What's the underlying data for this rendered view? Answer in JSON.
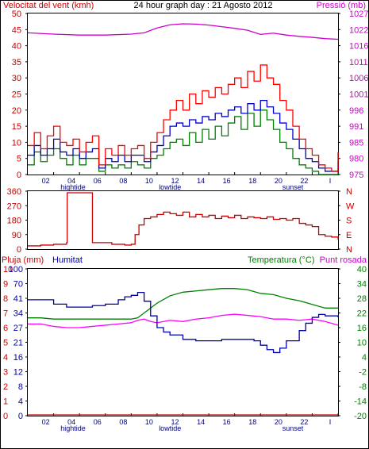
{
  "title": "24 hour graph day : 21 Agosto 2012",
  "colors": {
    "wind_gust": "#ff0000",
    "wind_avg": "#0000cc",
    "wind_min": "#008000",
    "pressure": "#cc00cc",
    "direction": "#cc0000",
    "rain": "#cc0000",
    "humidity": "#0000aa",
    "temperature": "#008000",
    "dewpoint": "#ff00ff",
    "frame": "#000000",
    "axis_label_red": "#cc0000",
    "axis_label_blue": "#0000aa",
    "axis_label_green": "#008000",
    "axis_label_magenta": "#cc00cc"
  },
  "chart_data": [
    {
      "id": "wind_pressure",
      "type": "line",
      "left_label": "Velocitat del vent (kmh)",
      "right_label": "Pressió (mb)",
      "xlim": [
        0,
        24
      ],
      "ylim": [
        0,
        50
      ],
      "y2lim": [
        975,
        1025
      ],
      "x_ticks": [
        "02",
        "04",
        "06",
        "08",
        "10",
        "12",
        "14",
        "16",
        "18",
        "20",
        "22",
        "I"
      ],
      "x_markers": [
        {
          "hour": 3.5,
          "label": "hightide"
        },
        {
          "hour": 11,
          "label": "lowtide"
        },
        {
          "hour": 20.5,
          "label": "sunset"
        }
      ],
      "y_ticks": [
        "0",
        "5",
        "10",
        "15",
        "20",
        "25",
        "30",
        "35",
        "40",
        "45",
        "50"
      ],
      "y2_ticks": [
        "975",
        "980",
        "985",
        "991",
        "996",
        "1001",
        "1006",
        "1011",
        "1016",
        "1022",
        "1027"
      ],
      "series": [
        {
          "key": "gust",
          "axis": "left",
          "x": [
            0,
            0.5,
            1,
            1.5,
            2,
            2.5,
            3,
            3.5,
            4,
            4.5,
            5,
            5.5,
            6,
            6.5,
            7,
            7.5,
            8,
            8.5,
            9,
            9.5,
            10,
            10.5,
            11,
            11.5,
            12,
            12.5,
            13,
            13.5,
            14,
            14.5,
            15,
            15.5,
            16,
            16.5,
            17,
            17.5,
            18,
            18.5,
            19,
            19.5,
            20,
            20.5,
            21,
            21.5,
            22,
            22.5,
            23,
            23.5,
            24
          ],
          "values": [
            9,
            13,
            8,
            12,
            15,
            10,
            9,
            11,
            7,
            10,
            12,
            3,
            8,
            6,
            9,
            6,
            8,
            9,
            5,
            10,
            13,
            17,
            20,
            23,
            20,
            25,
            22,
            26,
            24,
            27,
            25,
            28,
            30,
            27,
            32,
            29,
            34,
            30,
            28,
            23,
            20,
            15,
            11,
            8,
            6,
            3,
            2,
            1,
            7
          ]
        },
        {
          "key": "avg",
          "axis": "left",
          "x": [
            0,
            0.5,
            1,
            1.5,
            2,
            2.5,
            3,
            3.5,
            4,
            4.5,
            5,
            5.5,
            6,
            6.5,
            7,
            7.5,
            8,
            8.5,
            9,
            9.5,
            10,
            10.5,
            11,
            11.5,
            12,
            12.5,
            13,
            13.5,
            14,
            14.5,
            15,
            15.5,
            16,
            16.5,
            17,
            17.5,
            18,
            18.5,
            19,
            19.5,
            20,
            20.5,
            21,
            21.5,
            22,
            22.5,
            23,
            23.5,
            24
          ],
          "values": [
            6,
            9,
            6,
            8,
            11,
            7,
            6,
            8,
            5,
            7,
            8,
            2,
            5,
            4,
            6,
            4,
            6,
            6,
            4,
            7,
            9,
            12,
            15,
            16,
            15,
            17,
            16,
            18,
            17,
            19,
            18,
            20,
            21,
            19,
            22,
            20,
            23,
            21,
            19,
            16,
            14,
            11,
            8,
            5,
            4,
            2,
            1,
            1,
            4
          ]
        },
        {
          "key": "min",
          "axis": "left",
          "x": [
            0,
            0.5,
            1,
            1.5,
            2,
            2.5,
            3,
            3.5,
            4,
            4.5,
            5,
            5.5,
            6,
            6.5,
            7,
            7.5,
            8,
            8.5,
            9,
            9.5,
            10,
            10.5,
            11,
            11.5,
            12,
            12.5,
            13,
            13.5,
            14,
            14.5,
            15,
            15.5,
            16,
            16.5,
            17,
            17.5,
            18,
            18.5,
            19,
            19.5,
            20,
            20.5,
            21,
            21.5,
            22,
            22.5,
            23,
            23.5,
            24
          ],
          "values": [
            3,
            7,
            4,
            6,
            8,
            5,
            3,
            6,
            3,
            5,
            5,
            1,
            3,
            2,
            3,
            2,
            4,
            3,
            2,
            5,
            6,
            8,
            10,
            11,
            9,
            13,
            10,
            14,
            11,
            15,
            12,
            16,
            18,
            14,
            19,
            15,
            20,
            17,
            14,
            10,
            8,
            5,
            3,
            2,
            1,
            0,
            0,
            0,
            2
          ]
        },
        {
          "key": "pressure",
          "axis": "right",
          "x": [
            0,
            2,
            4,
            6,
            8,
            9,
            10,
            11,
            12,
            13,
            14,
            15,
            16,
            17,
            18,
            19,
            20,
            21,
            22,
            23,
            24
          ],
          "values": [
            1019,
            1018.6,
            1018.3,
            1018.3,
            1018.6,
            1019,
            1020.5,
            1021.5,
            1021.8,
            1021.7,
            1021.4,
            1020.9,
            1020.4,
            1019.8,
            1018.5,
            1018.9,
            1018.3,
            1017.9,
            1017.6,
            1017.2,
            1017
          ]
        }
      ]
    },
    {
      "id": "wind_direction",
      "type": "line",
      "xlim": [
        0,
        24
      ],
      "ylim": [
        0,
        360
      ],
      "y_ticks": [
        "0",
        "90",
        "180",
        "270",
        "360"
      ],
      "y2_ticks": [
        "N",
        "E",
        "S",
        "W",
        "N"
      ],
      "series": [
        {
          "key": "direction",
          "x": [
            0,
            1,
            2,
            3,
            3.05,
            4.9,
            5,
            5.5,
            6,
            6.5,
            7,
            7.5,
            8,
            8.3,
            8.6,
            9,
            9.5,
            10,
            10.5,
            11,
            11.5,
            12,
            12.5,
            13,
            13.5,
            14,
            14.5,
            15,
            15.5,
            16,
            16.5,
            17,
            17.5,
            18,
            18.5,
            19,
            19.5,
            20,
            20.5,
            21,
            21.5,
            22,
            22.5,
            23,
            23.5,
            24
          ],
          "values": [
            20,
            25,
            30,
            40,
            350,
            350,
            40,
            40,
            40,
            30,
            30,
            25,
            30,
            90,
            150,
            190,
            200,
            215,
            230,
            220,
            210,
            230,
            200,
            215,
            200,
            210,
            190,
            205,
            195,
            210,
            190,
            200,
            195,
            190,
            200,
            185,
            190,
            180,
            190,
            160,
            150,
            140,
            90,
            80,
            75,
            60
          ]
        }
      ]
    },
    {
      "id": "humidity_temperature",
      "type": "line",
      "left_label_1": "Pluja (mm)",
      "left_label_2": "Humitat",
      "right_label_1": "Temperatura (°C)",
      "right_label_2": "Punt rosada",
      "xlim": [
        0,
        24
      ],
      "ylim": [
        0,
        100
      ],
      "y2lim": [
        -20,
        40
      ],
      "x_ticks": [
        "02",
        "04",
        "06",
        "08",
        "10",
        "12",
        "14",
        "16",
        "18",
        "20",
        "22",
        "I"
      ],
      "x_markers": [
        {
          "hour": 3.5,
          "label": "hightide"
        },
        {
          "hour": 11,
          "label": "lowtide"
        },
        {
          "hour": 20.5,
          "label": "sunset"
        }
      ],
      "rain_ticks": [
        "0",
        "1",
        "2",
        "3",
        "4",
        "5",
        "6",
        "7",
        "8",
        "9",
        "10"
      ],
      "humidity_ticks": [
        "0",
        "4",
        "8",
        "12",
        "16",
        "21",
        "27",
        "34",
        "41",
        "70",
        "100"
      ],
      "y2_ticks": [
        "-20",
        "-14",
        "-8",
        "-2",
        "4",
        "10",
        "16",
        "22",
        "28",
        "34",
        "40"
      ],
      "series": [
        {
          "key": "humidity",
          "axis": "left",
          "x": [
            0,
            1,
            2,
            3,
            4,
            5,
            6,
            7,
            7.5,
            8,
            8.5,
            9,
            9.5,
            10,
            10.5,
            11,
            12,
            13,
            14,
            15,
            16,
            17,
            17.5,
            18,
            18.5,
            19,
            19.5,
            20,
            21,
            21.5,
            22,
            22.5,
            23,
            24
          ],
          "values": [
            79,
            79,
            76,
            74,
            74,
            75,
            76,
            79,
            81,
            82,
            84,
            78,
            68,
            60,
            57,
            55,
            52,
            51,
            51,
            52,
            52,
            52,
            51,
            48,
            45,
            43,
            46,
            51,
            58,
            63,
            67,
            69,
            68,
            67
          ]
        },
        {
          "key": "temperature",
          "axis": "right",
          "x": [
            0,
            1,
            2,
            3,
            4,
            5,
            6,
            7,
            8,
            8.5,
            9,
            9.5,
            10,
            11,
            12,
            13,
            14,
            15,
            16,
            17,
            18,
            19,
            20,
            21,
            22,
            23,
            24
          ],
          "values": [
            20,
            20,
            19.5,
            19.5,
            19.5,
            19.5,
            19.5,
            19.5,
            19.5,
            20,
            22,
            24,
            26,
            29,
            30.5,
            31,
            31.5,
            32,
            32,
            31.5,
            30,
            29.5,
            28,
            27,
            25.5,
            24,
            24
          ]
        },
        {
          "key": "dewpoint",
          "axis": "right",
          "x": [
            0,
            1,
            2,
            3,
            4,
            5,
            6,
            7,
            8,
            8.5,
            9,
            9.5,
            10,
            11,
            12,
            13,
            14,
            15,
            16,
            17,
            18,
            19,
            20,
            21,
            22,
            23,
            24
          ],
          "values": [
            17.5,
            17.5,
            16.5,
            16,
            16,
            16.5,
            17,
            17.5,
            18,
            19,
            19.5,
            18.5,
            18,
            19,
            18.5,
            19.5,
            20,
            21,
            21.5,
            21,
            20.5,
            19.5,
            19.5,
            19,
            19.5,
            18.5,
            17
          ]
        },
        {
          "key": "rain",
          "axis": "rain",
          "x": [
            0,
            24
          ],
          "values": [
            0,
            0
          ]
        }
      ]
    }
  ]
}
